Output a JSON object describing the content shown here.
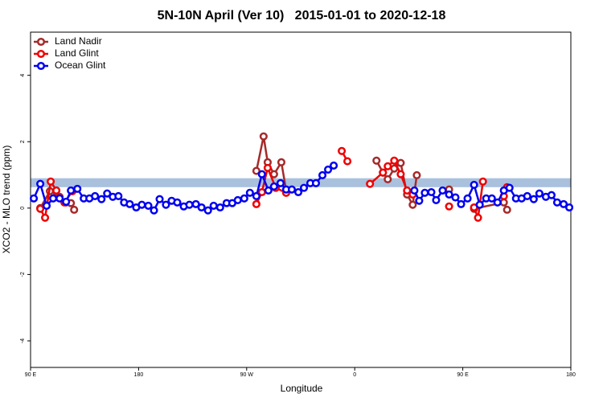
{
  "chart_data": {
    "type": "line",
    "title": "5N-10N April (Ver 10)   2015-01-01 to 2020-12-18",
    "xlabel": "Longitude",
    "ylabel": "XCO2 - MLO trend (ppm)",
    "xlim": [
      90,
      540
    ],
    "ylim": [
      -4.8,
      5.3
    ],
    "xticks": [
      {
        "value": 90,
        "label": "90 E"
      },
      180,
      {
        "value": 270,
        "label": "90 W"
      },
      {
        "value": 360,
        "label": "0"
      },
      {
        "value": 450,
        "label": "90 E"
      },
      {
        "value": 540,
        "label": "180"
      }
    ],
    "yticks": [
      -4,
      -2,
      0,
      2,
      4
    ],
    "band": [
      0.63,
      0.9
    ],
    "band_color": "#a9c1dd",
    "legend": "top-left",
    "series": [
      {
        "name": "Land Nadir",
        "color": "#a52a2a",
        "x": [
          98.1,
          106.1,
          114.2,
          119.6,
          123.6,
          126.3,
          200,
          278.1,
          284.1,
          287.5,
          292.8,
          298.9,
          302.9,
          340,
          378.1,
          383.5,
          387.5,
          392.9,
          398.3,
          403.6,
          408.3,
          411.7,
          425,
          438.6,
          450,
          459.4,
          484.2,
          486.9
        ],
        "values": [
          0,
          0.51,
          0.34,
          0.17,
          0.15,
          -0.05,
          null,
          1.12,
          2.16,
          1.38,
          1.02,
          1.38,
          0.53,
          null,
          1.43,
          1.07,
          0.87,
          1.19,
          1.36,
          0.41,
          0.1,
          0.99,
          null,
          0.56,
          null,
          -0.02,
          0.17,
          -0.05
        ]
      },
      {
        "name": "Land Glint",
        "color": "#ee0000",
        "x": [
          98.1,
          102.1,
          106.8,
          111.5,
          118.2,
          124.9,
          200,
          278.1,
          282.7,
          287.5,
          294.2,
          302.9,
          330,
          349.2,
          353.9,
          362,
          372.7,
          383.5,
          387.5,
          392.9,
          398.3,
          403.6,
          408.3,
          425,
          438.6,
          450,
          459.4,
          462.7,
          466.8,
          475,
          484.2,
          486.9
        ],
        "values": [
          -0.02,
          -0.29,
          0.8,
          0.53,
          0.17,
          0.51,
          null,
          0.12,
          0.48,
          1.21,
          0.61,
          0.46,
          null,
          1.72,
          1.41,
          null,
          0.73,
          1.07,
          1.26,
          1.43,
          1.02,
          0.53,
          0.41,
          null,
          0.05,
          null,
          0.02,
          -0.29,
          0.8,
          null,
          0.36,
          0.63
        ]
      },
      {
        "name": "Ocean Glint",
        "color": "#0000ee",
        "x": [
          92.7,
          98.1,
          103.4,
          108.8,
          114.2,
          119.6,
          123.6,
          129.0,
          134.3,
          139.0,
          143.7,
          149.1,
          153.8,
          158.5,
          163.2,
          167.9,
          172.6,
          178.0,
          182.7,
          188.1,
          192.8,
          197.5,
          202.8,
          207.5,
          212.2,
          217.6,
          222.3,
          227.7,
          232.4,
          237.8,
          242.5,
          247.9,
          253.3,
          258.0,
          262.6,
          268.0,
          272.7,
          278.1,
          282.7,
          288.1,
          292.8,
          298.2,
          302.9,
          307.6,
          313.0,
          317.7,
          323.0,
          327.7,
          333.1,
          337.8,
          342.5,
          380,
          409.7,
          413.7,
          418.4,
          423.8,
          427.8,
          433.2,
          438.6,
          443.9,
          448.6,
          454.0,
          459.4,
          464.1,
          469.5,
          474.2,
          478.9,
          484.2,
          488.9,
          494.3,
          499.0,
          503.7,
          509.1,
          513.8,
          519.2,
          523.9,
          528.6,
          534.0,
          538.7
        ],
        "values": [
          0.29,
          0.73,
          0.07,
          0.29,
          0.29,
          0.19,
          0.53,
          0.58,
          0.29,
          0.29,
          0.36,
          0.27,
          0.44,
          0.34,
          0.36,
          0.17,
          0.12,
          0.02,
          0.1,
          0.07,
          -0.07,
          0.27,
          0.1,
          0.22,
          0.17,
          0.05,
          0.1,
          0.12,
          0.02,
          -0.07,
          0.07,
          0.02,
          0.15,
          0.15,
          0.24,
          0.29,
          0.46,
          0.36,
          1.02,
          0.53,
          0.65,
          0.75,
          0.56,
          0.56,
          0.48,
          0.61,
          0.75,
          0.75,
          0.99,
          1.16,
          1.28,
          null,
          0.53,
          0.22,
          0.46,
          0.48,
          0.24,
          0.53,
          0.41,
          0.32,
          0.12,
          0.29,
          0.7,
          0.1,
          0.29,
          0.29,
          0.17,
          0.53,
          0.61,
          0.29,
          0.29,
          0.36,
          0.27,
          0.44,
          0.34,
          0.39,
          0.17,
          0.12,
          0.02
        ]
      }
    ]
  }
}
